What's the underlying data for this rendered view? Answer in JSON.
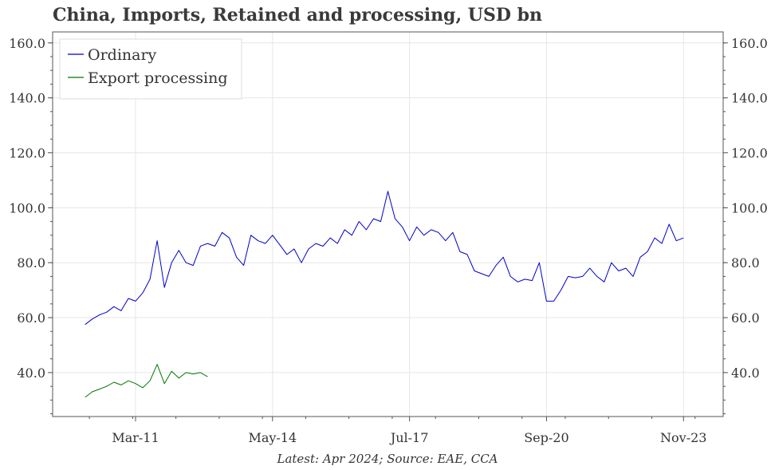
{
  "title": "China, Imports, Retained and processing, USD bn",
  "source": "Latest: Apr 2024; Source: EAE, CCA",
  "chart_data": {
    "type": "line",
    "x_tick_labels": [
      "Mar-11",
      "May-14",
      "Jul-17",
      "Sep-20",
      "Nov-23"
    ],
    "x_tick_dates": [
      "2011-03",
      "2014-05",
      "2017-07",
      "2020-09",
      "2023-11"
    ],
    "x_range": [
      "2009-04",
      "2024-10"
    ],
    "yticks": [
      "40.0",
      "60.0",
      "80.0",
      "100.0",
      "120.0",
      "140.0",
      "160.0"
    ],
    "ylim": [
      24,
      164
    ],
    "grid": true,
    "legend_position": "top-left",
    "series": [
      {
        "name": "Ordinary",
        "color": "#0000cc",
        "points": [
          [
            "2010-01",
            57.5
          ],
          [
            "2010-03",
            59.5
          ],
          [
            "2010-05",
            61
          ],
          [
            "2010-07",
            62
          ],
          [
            "2010-09",
            64
          ],
          [
            "2010-11",
            62.5
          ],
          [
            "2011-01",
            67
          ],
          [
            "2011-03",
            66
          ],
          [
            "2011-05",
            69
          ],
          [
            "2011-07",
            74
          ],
          [
            "2011-09",
            88
          ],
          [
            "2011-11",
            71
          ],
          [
            "2012-01",
            80
          ],
          [
            "2012-03",
            84.5
          ],
          [
            "2012-05",
            80
          ],
          [
            "2012-07",
            79
          ],
          [
            "2012-09",
            86
          ],
          [
            "2012-11",
            87
          ],
          [
            "2013-01",
            86
          ],
          [
            "2013-03",
            91
          ],
          [
            "2013-05",
            89
          ],
          [
            "2013-07",
            82
          ],
          [
            "2013-09",
            79
          ],
          [
            "2013-11",
            90
          ],
          [
            "2014-01",
            88
          ],
          [
            "2014-03",
            87
          ],
          [
            "2014-05",
            90
          ],
          [
            "2014-07",
            86.5
          ],
          [
            "2014-09",
            83
          ],
          [
            "2014-11",
            85
          ],
          [
            "2015-01",
            80
          ],
          [
            "2015-03",
            85
          ],
          [
            "2015-05",
            87
          ],
          [
            "2015-07",
            86
          ],
          [
            "2015-09",
            89
          ],
          [
            "2015-11",
            87
          ],
          [
            "2016-01",
            92
          ],
          [
            "2016-03",
            90
          ],
          [
            "2016-05",
            95
          ],
          [
            "2016-07",
            92
          ],
          [
            "2016-09",
            96
          ],
          [
            "2016-11",
            95
          ],
          [
            "2017-01",
            106
          ],
          [
            "2017-03",
            96
          ],
          [
            "2017-05",
            93
          ],
          [
            "2017-07",
            88
          ],
          [
            "2017-09",
            93
          ],
          [
            "2017-11",
            90
          ],
          [
            "2018-01",
            92
          ],
          [
            "2018-03",
            91
          ],
          [
            "2018-05",
            88
          ],
          [
            "2018-07",
            91
          ],
          [
            "2018-09",
            84
          ],
          [
            "2018-11",
            83
          ],
          [
            "2019-01",
            77
          ],
          [
            "2019-03",
            76
          ],
          [
            "2019-05",
            75
          ],
          [
            "2019-07",
            79
          ],
          [
            "2019-09",
            82
          ],
          [
            "2019-11",
            75
          ],
          [
            "2020-01",
            73
          ],
          [
            "2020-03",
            74
          ],
          [
            "2020-05",
            73.5
          ],
          [
            "2020-07",
            80
          ],
          [
            "2020-09",
            66
          ],
          [
            "2020-11",
            66
          ],
          [
            "2021-01",
            70
          ],
          [
            "2021-03",
            75
          ],
          [
            "2021-05",
            74.5
          ],
          [
            "2021-07",
            75
          ],
          [
            "2021-09",
            78
          ],
          [
            "2021-11",
            75
          ],
          [
            "2022-01",
            73
          ],
          [
            "2022-03",
            80
          ],
          [
            "2022-05",
            77
          ],
          [
            "2022-07",
            78
          ],
          [
            "2022-09",
            75
          ],
          [
            "2022-11",
            82
          ],
          [
            "2023-01",
            84
          ],
          [
            "2023-03",
            89
          ],
          [
            "2023-05",
            87
          ],
          [
            "2023-07",
            94
          ],
          [
            "2023-09",
            88
          ],
          [
            "2023-11",
            89
          ]
        ]
      },
      {
        "name": "Export processing",
        "color": "#007700",
        "points": [
          [
            "2010-01",
            31
          ],
          [
            "2010-03",
            33
          ],
          [
            "2010-05",
            34
          ],
          [
            "2010-07",
            35
          ],
          [
            "2010-09",
            36.5
          ],
          [
            "2010-11",
            35.5
          ],
          [
            "2011-01",
            37
          ],
          [
            "2011-03",
            36
          ],
          [
            "2011-05",
            34.5
          ],
          [
            "2011-07",
            37
          ],
          [
            "2011-09",
            43
          ],
          [
            "2011-11",
            36
          ],
          [
            "2012-01",
            40.5
          ],
          [
            "2012-03",
            38
          ],
          [
            "2012-05",
            40
          ],
          [
            "2012-07",
            39.5
          ],
          [
            "2012-09",
            40
          ],
          [
            "2012-11",
            38.5
          ]
        ]
      }
    ]
  }
}
